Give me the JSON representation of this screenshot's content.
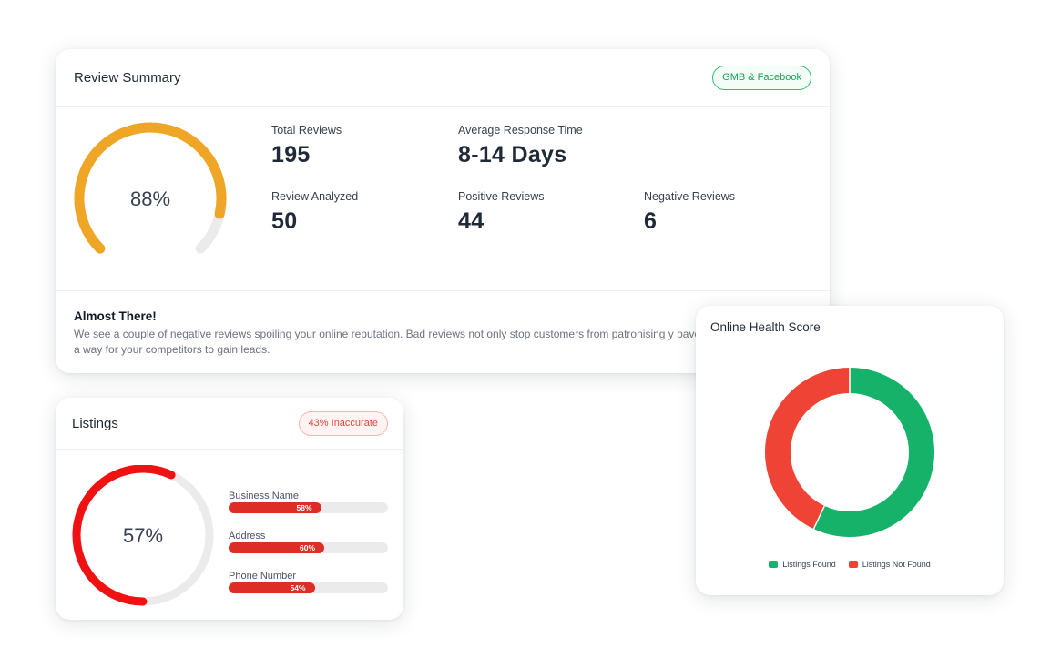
{
  "review": {
    "title": "Review Summary",
    "badge": "GMB & Facebook",
    "gauge_value": 88,
    "gauge_label": "88%",
    "gauge_color": "#efa627",
    "stats": {
      "total_reviews": {
        "label": "Total Reviews",
        "value": "195"
      },
      "avg_response": {
        "label": "Average Response Time",
        "value": "8-14 Days"
      },
      "analyzed": {
        "label": "Review Analyzed",
        "value": "50"
      },
      "positive": {
        "label": "Positive Reviews",
        "value": "44"
      },
      "negative": {
        "label": "Negative Reviews",
        "value": "6"
      }
    },
    "message_title": "Almost There!",
    "message_body": "We see a couple of negative reviews spoiling your online reputation. Bad reviews not only stop customers from patronising y paves a way for your competitors to gain leads."
  },
  "listings": {
    "title": "Listings",
    "badge": "43% Inaccurate",
    "gauge_value": 57,
    "gauge_label": "57%",
    "gauge_color": "#f01212",
    "bars": [
      {
        "label": "Business Name",
        "value": 58,
        "pct": "58%"
      },
      {
        "label": "Address",
        "value": 60,
        "pct": "60%"
      },
      {
        "label": "Phone Number",
        "value": 54,
        "pct": "54%"
      }
    ]
  },
  "health": {
    "title": "Online Health Score",
    "chart_data": {
      "type": "pie",
      "slices": [
        {
          "name": "Listings Found",
          "value": 57,
          "color": "#17b26a"
        },
        {
          "name": "Listings Not Found",
          "value": 43,
          "color": "#ee4335"
        }
      ]
    },
    "legend": [
      "Listings Found",
      "Listings Not Found"
    ]
  }
}
